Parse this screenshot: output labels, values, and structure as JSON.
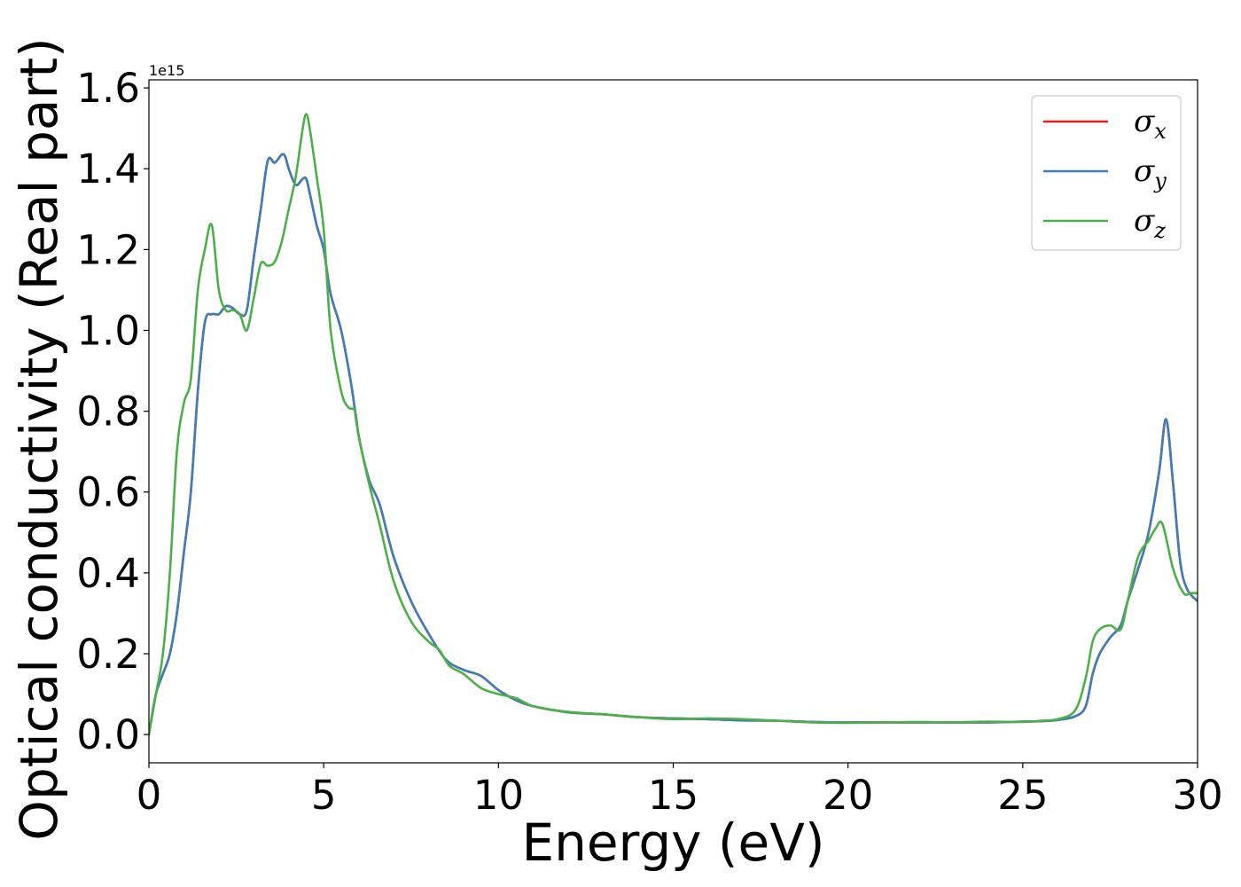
{
  "chart_data": {
    "type": "line",
    "xlabel": "Energy (eV)",
    "ylabel": "Optical conductivity (Real part)",
    "y_offset_label": "1e15",
    "xlim": [
      0,
      30
    ],
    "ylim": [
      -0.07,
      1.62
    ],
    "x_ticks": [
      0,
      5,
      10,
      15,
      20,
      25,
      30
    ],
    "x_tick_labels": [
      "0",
      "5",
      "10",
      "15",
      "20",
      "25",
      "30"
    ],
    "y_ticks": [
      0.0,
      0.2,
      0.4,
      0.6,
      0.8,
      1.0,
      1.2,
      1.4,
      1.6
    ],
    "y_tick_labels": [
      "0.0",
      "0.2",
      "0.4",
      "0.6",
      "0.8",
      "1.0",
      "1.2",
      "1.4",
      "1.6"
    ],
    "grid": false,
    "legend_position": "top-right",
    "series": [
      {
        "name": "σx",
        "legend_symbol": "σ",
        "legend_sub": "x",
        "color": "#e41a1c",
        "x": [
          0,
          0.2,
          0.4,
          0.6,
          0.8,
          1.0,
          1.2,
          1.4,
          1.6,
          1.8,
          2.0,
          2.2,
          2.4,
          2.6,
          2.8,
          3.0,
          3.2,
          3.4,
          3.6,
          3.8,
          3.9,
          4.0,
          4.2,
          4.4,
          4.5,
          4.6,
          4.8,
          5.0,
          5.2,
          5.5,
          5.8,
          6.0,
          6.3,
          6.6,
          7.0,
          7.5,
          8.0,
          8.5,
          9.0,
          9.5,
          10.0,
          10.5,
          11.0,
          12.0,
          13.0,
          14.0,
          15.0,
          16.0,
          17.0,
          18.0,
          19.0,
          20.0,
          21.0,
          22.0,
          23.0,
          24.0,
          25.0,
          25.5,
          26.0,
          26.5,
          26.8,
          27.0,
          27.2,
          27.5,
          27.8,
          28.0,
          28.3,
          28.6,
          28.9,
          29.1,
          29.3,
          29.5,
          29.7,
          30.0
        ],
        "values": [
          0.0,
          0.1,
          0.15,
          0.2,
          0.3,
          0.45,
          0.6,
          0.85,
          1.02,
          1.04,
          1.04,
          1.06,
          1.055,
          1.04,
          1.05,
          1.18,
          1.3,
          1.42,
          1.415,
          1.435,
          1.43,
          1.4,
          1.36,
          1.375,
          1.375,
          1.34,
          1.26,
          1.2,
          1.09,
          1.0,
          0.86,
          0.74,
          0.63,
          0.57,
          0.44,
          0.33,
          0.25,
          0.185,
          0.16,
          0.145,
          0.11,
          0.085,
          0.07,
          0.055,
          0.05,
          0.043,
          0.04,
          0.038,
          0.035,
          0.034,
          0.031,
          0.03,
          0.03,
          0.03,
          0.03,
          0.03,
          0.032,
          0.033,
          0.036,
          0.045,
          0.07,
          0.15,
          0.2,
          0.24,
          0.27,
          0.33,
          0.41,
          0.5,
          0.65,
          0.78,
          0.62,
          0.43,
          0.36,
          0.33
        ]
      },
      {
        "name": "σy",
        "legend_symbol": "σ",
        "legend_sub": "y",
        "color": "#3f7fb5",
        "x": [
          0,
          0.2,
          0.4,
          0.6,
          0.8,
          1.0,
          1.2,
          1.4,
          1.6,
          1.8,
          2.0,
          2.2,
          2.4,
          2.6,
          2.8,
          3.0,
          3.2,
          3.4,
          3.6,
          3.8,
          3.9,
          4.0,
          4.2,
          4.4,
          4.5,
          4.6,
          4.8,
          5.0,
          5.2,
          5.5,
          5.8,
          6.0,
          6.3,
          6.6,
          7.0,
          7.5,
          8.0,
          8.5,
          9.0,
          9.5,
          10.0,
          10.5,
          11.0,
          12.0,
          13.0,
          14.0,
          15.0,
          16.0,
          17.0,
          18.0,
          19.0,
          20.0,
          21.0,
          22.0,
          23.0,
          24.0,
          25.0,
          25.5,
          26.0,
          26.5,
          26.8,
          27.0,
          27.2,
          27.5,
          27.8,
          28.0,
          28.3,
          28.6,
          28.9,
          29.1,
          29.3,
          29.5,
          29.7,
          30.0
        ],
        "values": [
          0.0,
          0.1,
          0.15,
          0.2,
          0.3,
          0.45,
          0.6,
          0.85,
          1.02,
          1.04,
          1.04,
          1.06,
          1.055,
          1.04,
          1.05,
          1.18,
          1.3,
          1.42,
          1.415,
          1.435,
          1.43,
          1.4,
          1.36,
          1.375,
          1.375,
          1.34,
          1.26,
          1.2,
          1.09,
          1.0,
          0.86,
          0.74,
          0.63,
          0.57,
          0.44,
          0.33,
          0.25,
          0.185,
          0.16,
          0.145,
          0.11,
          0.085,
          0.07,
          0.055,
          0.05,
          0.043,
          0.04,
          0.038,
          0.035,
          0.034,
          0.031,
          0.03,
          0.03,
          0.03,
          0.03,
          0.03,
          0.032,
          0.033,
          0.036,
          0.045,
          0.07,
          0.15,
          0.2,
          0.24,
          0.27,
          0.33,
          0.41,
          0.5,
          0.65,
          0.78,
          0.62,
          0.43,
          0.36,
          0.33
        ]
      },
      {
        "name": "σz",
        "legend_symbol": "σ",
        "legend_sub": "z",
        "color": "#4daf4a",
        "x": [
          0,
          0.2,
          0.4,
          0.6,
          0.8,
          1.0,
          1.2,
          1.4,
          1.6,
          1.8,
          2.0,
          2.2,
          2.4,
          2.6,
          2.8,
          3.0,
          3.2,
          3.4,
          3.6,
          3.8,
          4.0,
          4.2,
          4.4,
          4.5,
          4.6,
          4.8,
          5.0,
          5.2,
          5.5,
          5.7,
          5.9,
          6.0,
          6.3,
          6.6,
          7.0,
          7.5,
          8.0,
          8.3,
          8.6,
          9.0,
          9.5,
          10.0,
          10.5,
          11.0,
          12.0,
          13.0,
          14.0,
          15.0,
          16.0,
          17.0,
          18.0,
          19.0,
          20.0,
          21.0,
          22.0,
          23.0,
          24.0,
          25.0,
          25.5,
          26.0,
          26.5,
          26.8,
          27.0,
          27.2,
          27.5,
          27.8,
          28.0,
          28.3,
          28.6,
          28.8,
          29.0,
          29.3,
          29.6,
          29.8,
          30.0
        ],
        "values": [
          0.0,
          0.1,
          0.2,
          0.4,
          0.7,
          0.82,
          0.88,
          1.1,
          1.2,
          1.26,
          1.1,
          1.05,
          1.05,
          1.04,
          1.0,
          1.08,
          1.165,
          1.16,
          1.17,
          1.22,
          1.3,
          1.38,
          1.5,
          1.535,
          1.5,
          1.38,
          1.25,
          1.0,
          0.85,
          0.81,
          0.8,
          0.74,
          0.62,
          0.52,
          0.38,
          0.28,
          0.23,
          0.21,
          0.17,
          0.15,
          0.115,
          0.1,
          0.09,
          0.07,
          0.056,
          0.05,
          0.043,
          0.038,
          0.04,
          0.038,
          0.034,
          0.03,
          0.029,
          0.03,
          0.031,
          0.03,
          0.032,
          0.031,
          0.034,
          0.038,
          0.06,
          0.14,
          0.23,
          0.26,
          0.27,
          0.26,
          0.33,
          0.44,
          0.48,
          0.51,
          0.52,
          0.41,
          0.35,
          0.35,
          0.35
        ]
      }
    ]
  }
}
